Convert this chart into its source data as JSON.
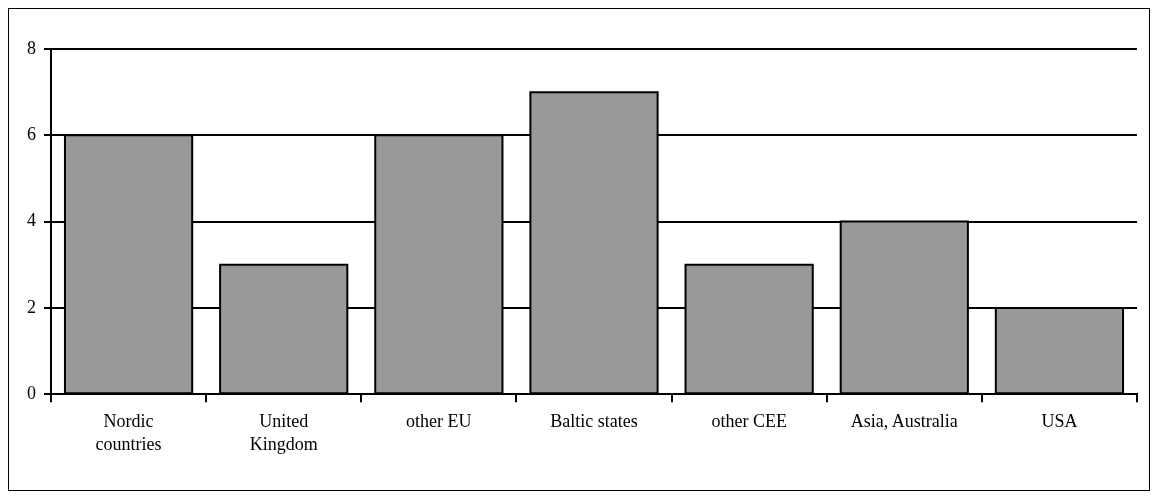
{
  "chart_data": {
    "type": "bar",
    "categories": [
      "Nordic countries",
      "United Kingdom",
      "other EU",
      "Baltic states",
      "other CEE",
      "Asia, Australia",
      "USA"
    ],
    "values": [
      6,
      3,
      6,
      7,
      3,
      4,
      2
    ],
    "color": "#999999",
    "ylim": [
      0,
      8
    ],
    "yticks": [
      0,
      2,
      4,
      6,
      8
    ],
    "grid": "y",
    "legend": false
  }
}
